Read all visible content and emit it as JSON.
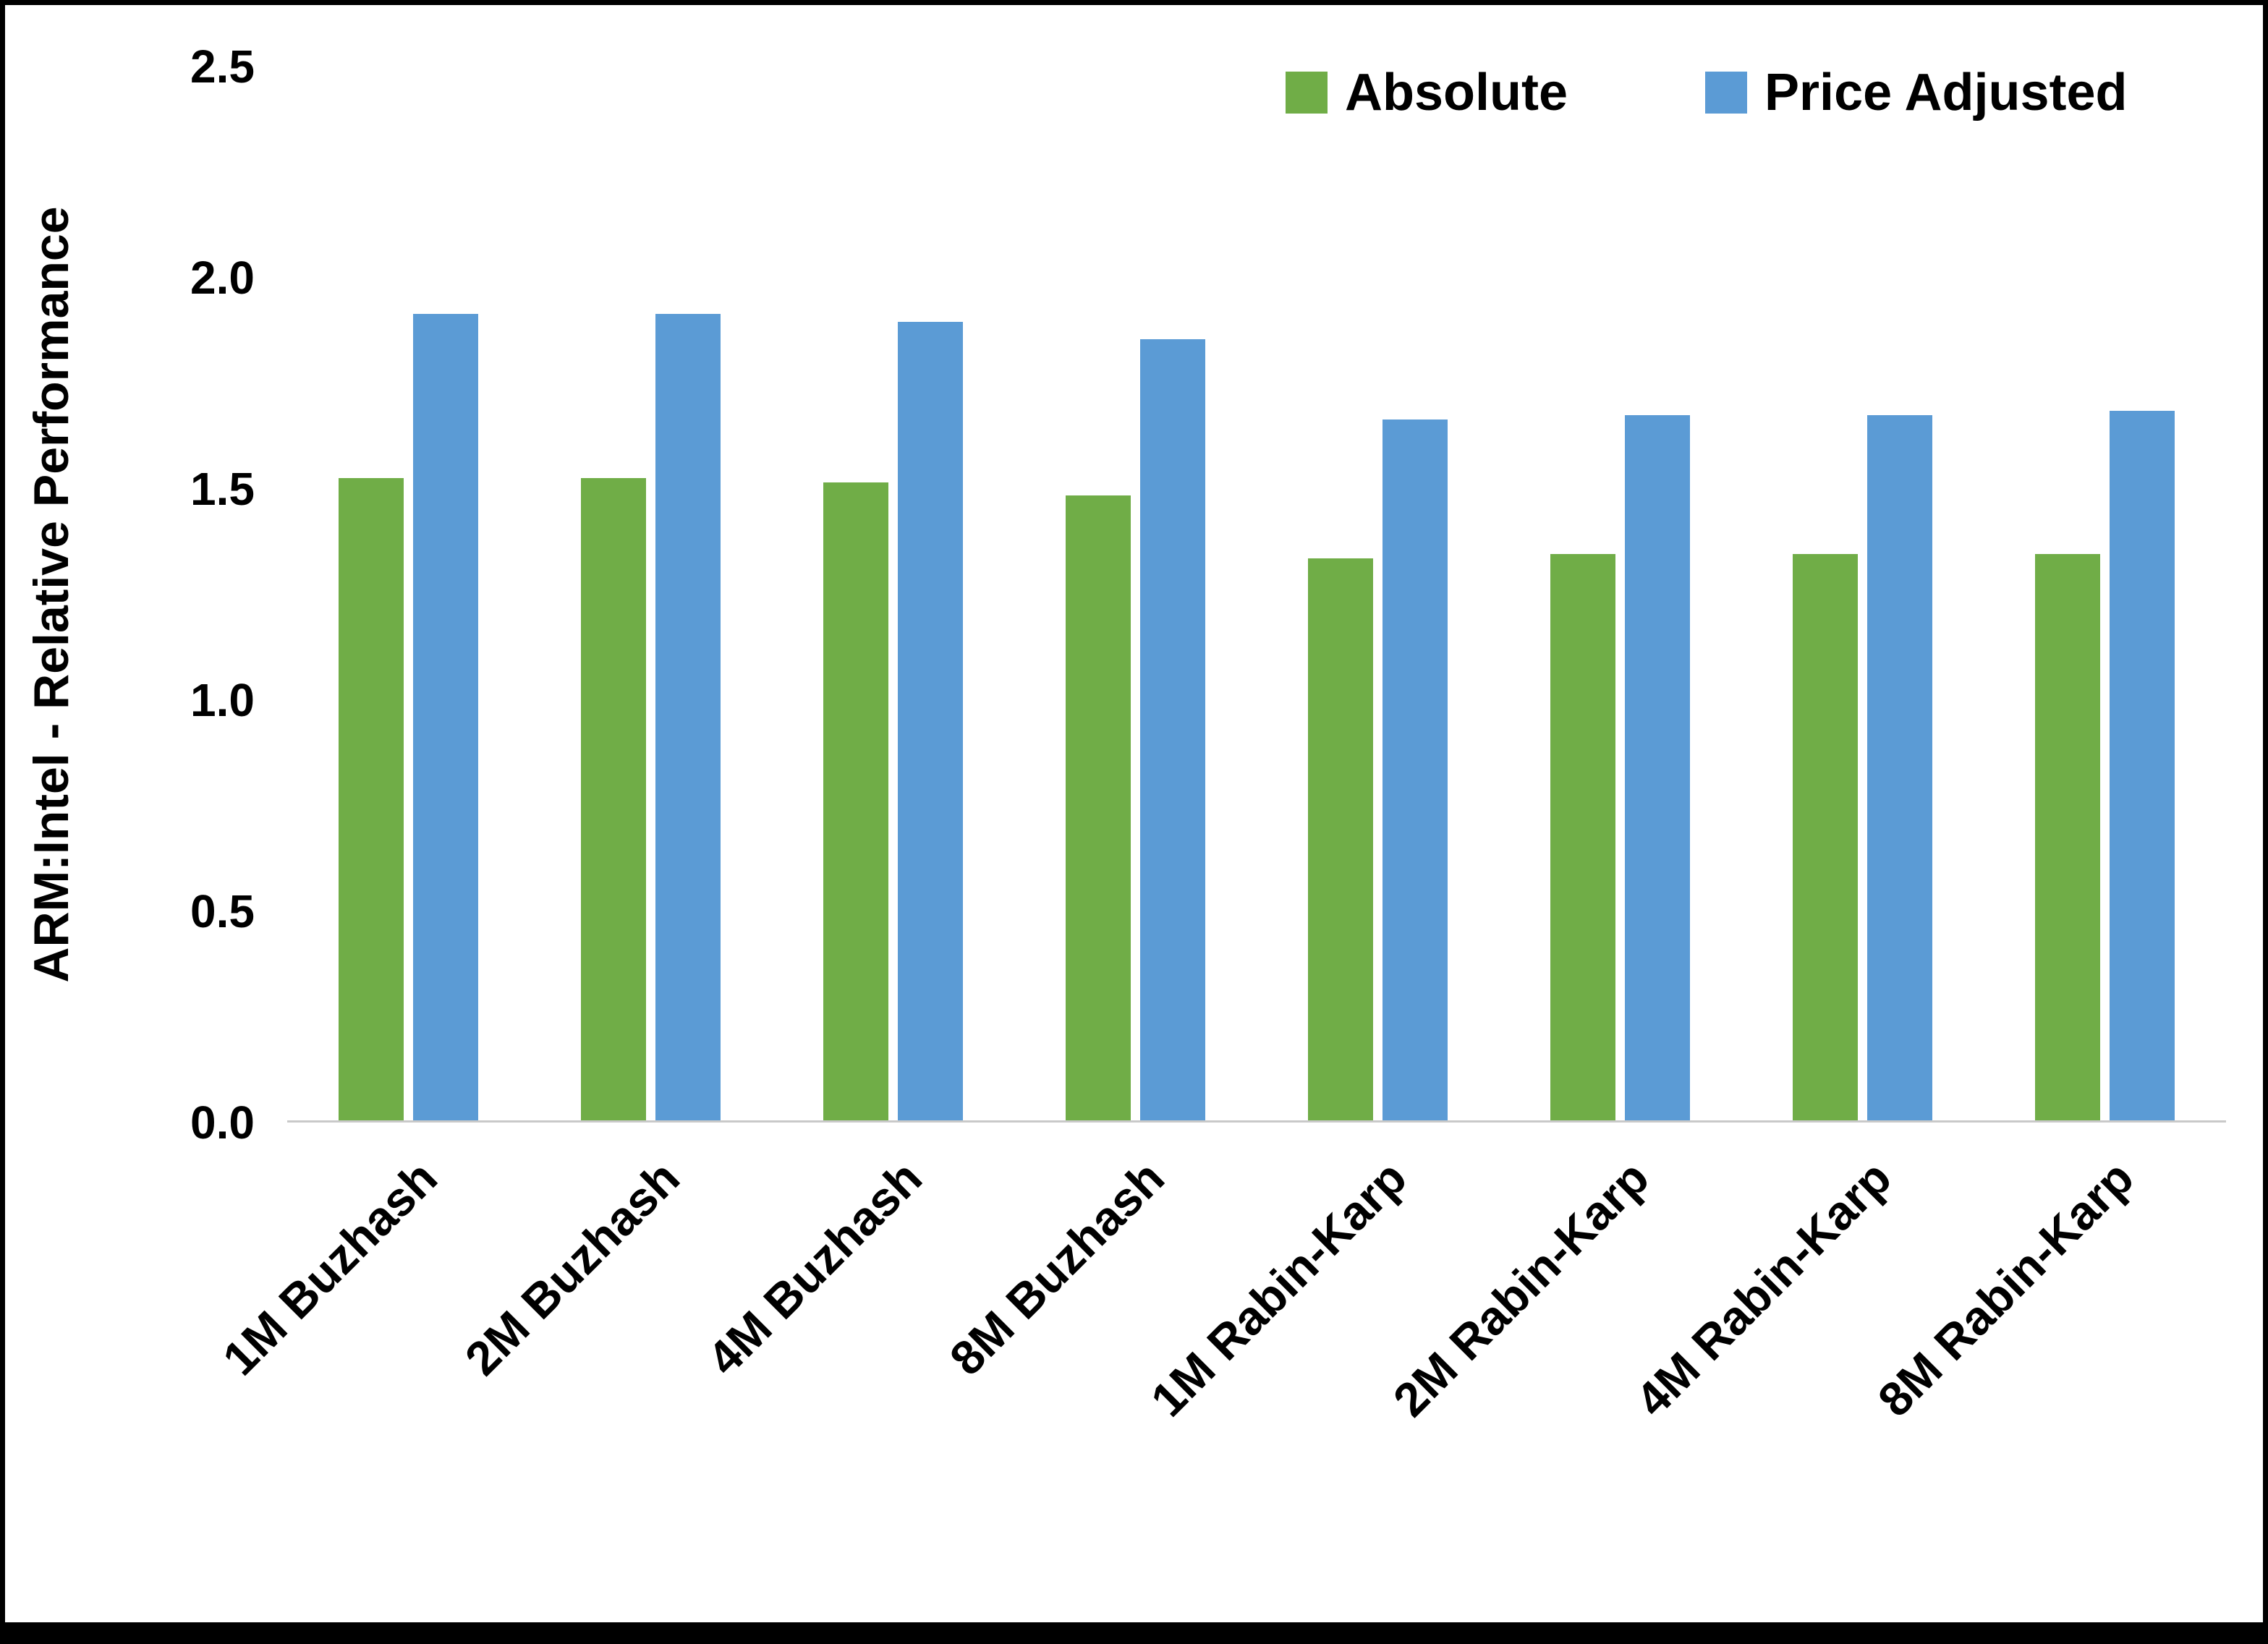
{
  "chart_data": {
    "type": "bar",
    "title": "",
    "xlabel": "",
    "ylabel": "ARM:Intel - Relative Performance",
    "ylim": [
      0,
      2.5
    ],
    "yticks": [
      0.0,
      0.5,
      1.0,
      1.5,
      2.0,
      2.5
    ],
    "ytick_format_decimals": 1,
    "grid": false,
    "legend_position": "top-right",
    "categories": [
      "1M Buzhash",
      "2M Buzhash",
      "4M Buzhash",
      "8M Buzhash",
      "1M Rabin-Karp",
      "2M Rabin-Karp",
      "4M Rabin-Karp",
      "8M Rabin-Karp"
    ],
    "series": [
      {
        "name": "Absolute",
        "color": "#70AD47",
        "values": [
          1.52,
          1.52,
          1.51,
          1.48,
          1.33,
          1.34,
          1.34,
          1.34
        ]
      },
      {
        "name": "Price Adjusted",
        "color": "#5B9BD5",
        "values": [
          1.91,
          1.91,
          1.89,
          1.85,
          1.66,
          1.67,
          1.67,
          1.68
        ]
      }
    ]
  },
  "colors": {
    "background": "#FFFFFF",
    "border": "#000000",
    "axis_line": "#C9C9C9",
    "text": "#000000"
  }
}
